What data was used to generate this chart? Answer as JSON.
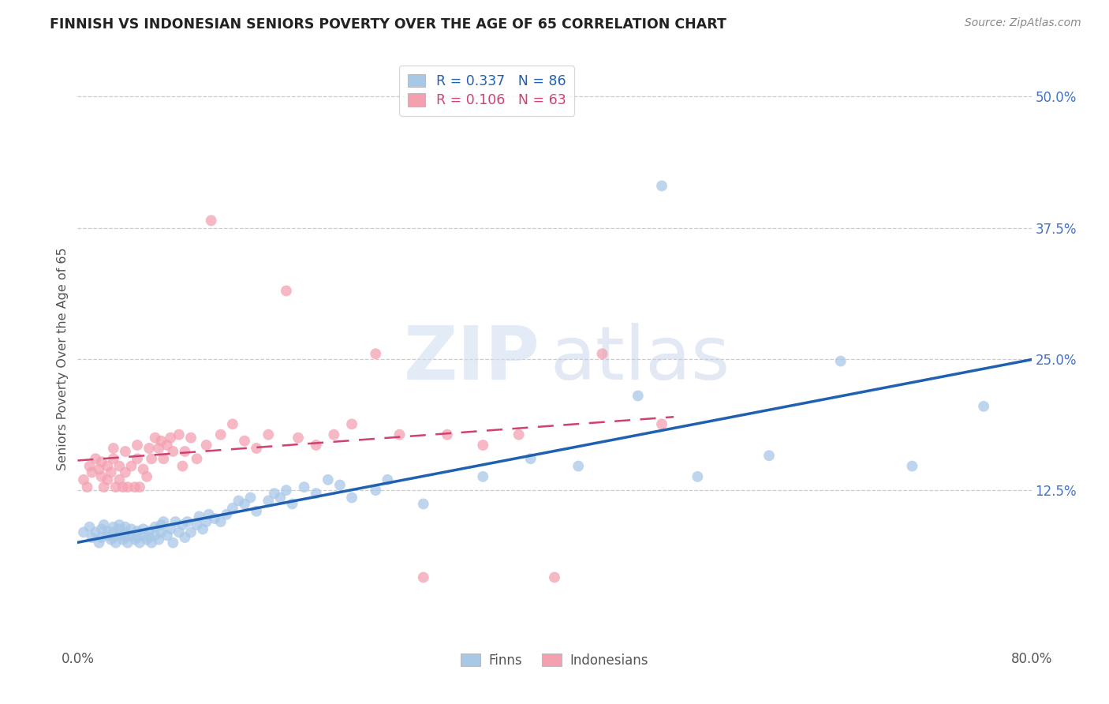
{
  "title": "FINNISH VS INDONESIAN SENIORS POVERTY OVER THE AGE OF 65 CORRELATION CHART",
  "source": "Source: ZipAtlas.com",
  "ylabel": "Seniors Poverty Over the Age of 65",
  "xmin": 0.0,
  "xmax": 0.8,
  "ymin": -0.025,
  "ymax": 0.525,
  "ytick_vals": [
    0.125,
    0.25,
    0.375,
    0.5
  ],
  "ytick_labels": [
    "12.5%",
    "25.0%",
    "37.5%",
    "50.0%"
  ],
  "xtick_vals": [
    0.0,
    0.8
  ],
  "xtick_labels": [
    "0.0%",
    "80.0%"
  ],
  "legend_line1": "R = 0.337   N = 86",
  "legend_line2": "R = 0.106   N = 63",
  "color_finns": "#a8c8e8",
  "color_indonesians": "#f4a0b0",
  "color_line_finns": "#2060b0",
  "color_line_indonesians": "#d04070",
  "watermark_zip": "ZIP",
  "watermark_atlas": "atlas",
  "background_color": "#ffffff",
  "grid_color": "#cccccc",
  "finns_x": [
    0.005,
    0.01,
    0.012,
    0.015,
    0.018,
    0.02,
    0.02,
    0.022,
    0.025,
    0.025,
    0.028,
    0.03,
    0.03,
    0.03,
    0.032,
    0.035,
    0.035,
    0.035,
    0.038,
    0.04,
    0.04,
    0.04,
    0.042,
    0.045,
    0.045,
    0.048,
    0.05,
    0.05,
    0.052,
    0.055,
    0.055,
    0.058,
    0.06,
    0.06,
    0.062,
    0.065,
    0.065,
    0.068,
    0.07,
    0.07,
    0.072,
    0.075,
    0.078,
    0.08,
    0.082,
    0.085,
    0.088,
    0.09,
    0.092,
    0.095,
    0.1,
    0.102,
    0.105,
    0.108,
    0.11,
    0.115,
    0.12,
    0.125,
    0.13,
    0.135,
    0.14,
    0.145,
    0.15,
    0.16,
    0.165,
    0.17,
    0.175,
    0.18,
    0.19,
    0.2,
    0.21,
    0.22,
    0.23,
    0.25,
    0.26,
    0.29,
    0.34,
    0.38,
    0.42,
    0.47,
    0.49,
    0.52,
    0.58,
    0.64,
    0.7,
    0.76
  ],
  "finns_y": [
    0.085,
    0.09,
    0.08,
    0.085,
    0.075,
    0.08,
    0.088,
    0.092,
    0.082,
    0.086,
    0.078,
    0.08,
    0.085,
    0.09,
    0.075,
    0.082,
    0.088,
    0.092,
    0.078,
    0.08,
    0.085,
    0.09,
    0.075,
    0.082,
    0.088,
    0.078,
    0.08,
    0.086,
    0.075,
    0.082,
    0.088,
    0.078,
    0.08,
    0.086,
    0.075,
    0.082,
    0.09,
    0.078,
    0.085,
    0.092,
    0.095,
    0.082,
    0.088,
    0.075,
    0.095,
    0.085,
    0.092,
    0.08,
    0.095,
    0.085,
    0.092,
    0.1,
    0.088,
    0.095,
    0.102,
    0.098,
    0.095,
    0.102,
    0.108,
    0.115,
    0.112,
    0.118,
    0.105,
    0.115,
    0.122,
    0.118,
    0.125,
    0.112,
    0.128,
    0.122,
    0.135,
    0.13,
    0.118,
    0.125,
    0.135,
    0.112,
    0.138,
    0.155,
    0.148,
    0.215,
    0.415,
    0.138,
    0.158,
    0.248,
    0.148,
    0.205
  ],
  "indonesians_x": [
    0.005,
    0.008,
    0.01,
    0.012,
    0.015,
    0.018,
    0.02,
    0.02,
    0.022,
    0.025,
    0.025,
    0.028,
    0.03,
    0.03,
    0.032,
    0.035,
    0.035,
    0.038,
    0.04,
    0.04,
    0.042,
    0.045,
    0.048,
    0.05,
    0.05,
    0.052,
    0.055,
    0.058,
    0.06,
    0.062,
    0.065,
    0.068,
    0.07,
    0.072,
    0.075,
    0.078,
    0.08,
    0.085,
    0.088,
    0.09,
    0.095,
    0.1,
    0.108,
    0.112,
    0.12,
    0.13,
    0.14,
    0.15,
    0.16,
    0.175,
    0.185,
    0.2,
    0.215,
    0.23,
    0.25,
    0.27,
    0.29,
    0.31,
    0.34,
    0.37,
    0.4,
    0.44,
    0.49
  ],
  "indonesians_y": [
    0.135,
    0.128,
    0.148,
    0.142,
    0.155,
    0.145,
    0.138,
    0.152,
    0.128,
    0.135,
    0.148,
    0.142,
    0.155,
    0.165,
    0.128,
    0.135,
    0.148,
    0.128,
    0.142,
    0.162,
    0.128,
    0.148,
    0.128,
    0.155,
    0.168,
    0.128,
    0.145,
    0.138,
    0.165,
    0.155,
    0.175,
    0.165,
    0.172,
    0.155,
    0.168,
    0.175,
    0.162,
    0.178,
    0.148,
    0.162,
    0.175,
    0.155,
    0.168,
    0.382,
    0.178,
    0.188,
    0.172,
    0.165,
    0.178,
    0.315,
    0.175,
    0.168,
    0.178,
    0.188,
    0.255,
    0.178,
    0.042,
    0.178,
    0.168,
    0.178,
    0.042,
    0.255,
    0.188
  ]
}
